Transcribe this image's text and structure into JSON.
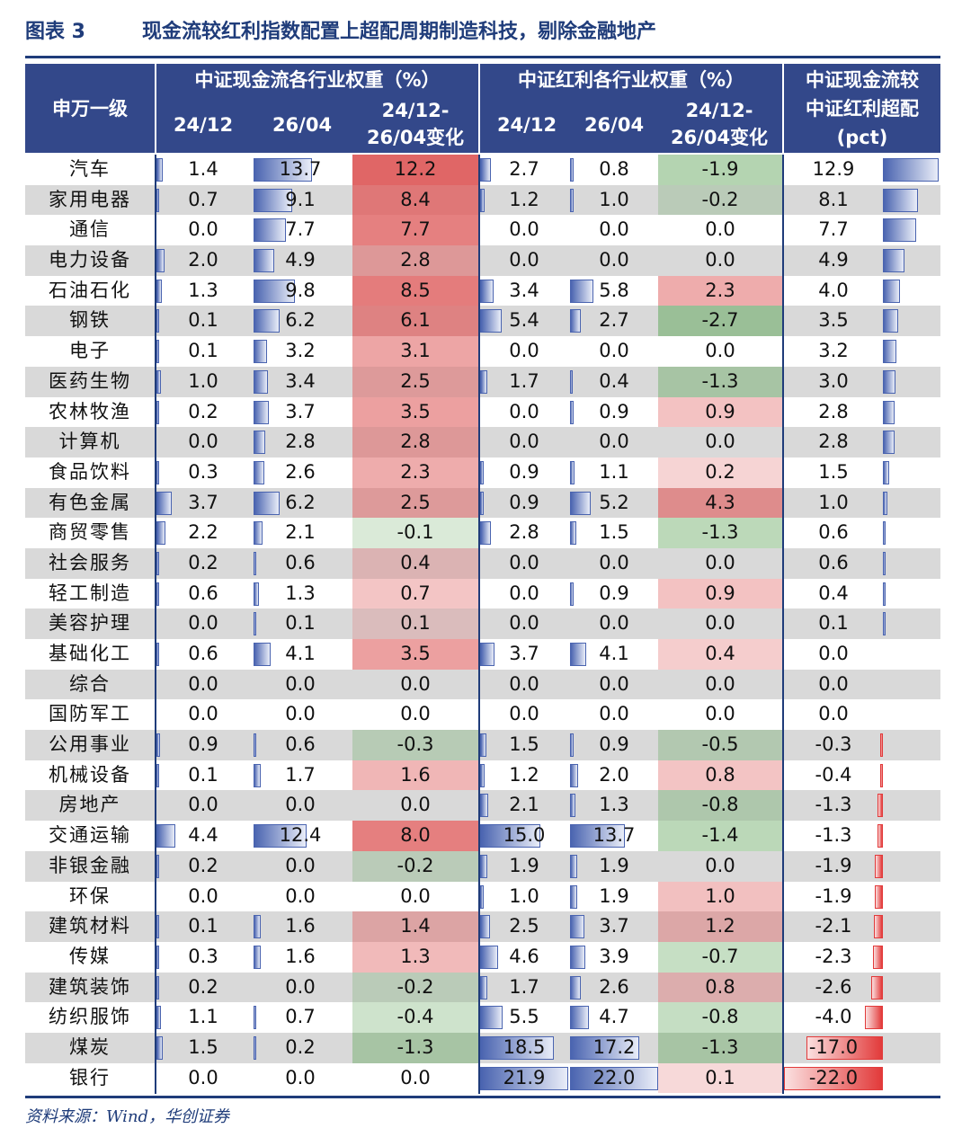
{
  "title": {
    "label": "图表 3",
    "text": "现金流较红利指数配置上超配周期制造科技，剔除金融地产"
  },
  "header": {
    "first_col": "申万一级",
    "group1": "中证现金流各行业权重（%）",
    "group2": "中证红利各行业权重（%）",
    "group3_line1": "中证现金流较",
    "group3_line2": "中证红利超配",
    "group3_line3": "(pct)",
    "col_2412": "24/12",
    "col_2604": "26/04",
    "col_chg_line1": "24/12-",
    "col_chg_line2": "26/04变化"
  },
  "colors": {
    "header_bg": "#33488a",
    "bar_blue": "#4a64b0",
    "bar_red": "#e23a3a",
    "pos": "#e06666",
    "neg": "#6aaa64"
  },
  "rows": [
    {
      "name": "汽车",
      "cf24": "1.4",
      "cf26": "13.7",
      "cfch": "12.2",
      "dv24": "2.7",
      "dv26": "0.8",
      "dvch": "-1.9",
      "ov": "12.9"
    },
    {
      "name": "家用电器",
      "cf24": "0.7",
      "cf26": "9.1",
      "cfch": "8.4",
      "dv24": "1.2",
      "dv26": "1.0",
      "dvch": "-0.2",
      "ov": "8.1"
    },
    {
      "name": "通信",
      "cf24": "0.0",
      "cf26": "7.7",
      "cfch": "7.7",
      "dv24": "0.0",
      "dv26": "0.0",
      "dvch": "0.0",
      "ov": "7.7"
    },
    {
      "name": "电力设备",
      "cf24": "2.0",
      "cf26": "4.9",
      "cfch": "2.8",
      "dv24": "0.0",
      "dv26": "0.0",
      "dvch": "0.0",
      "ov": "4.9"
    },
    {
      "name": "石油石化",
      "cf24": "1.3",
      "cf26": "9.8",
      "cfch": "8.5",
      "dv24": "3.4",
      "dv26": "5.8",
      "dvch": "2.3",
      "ov": "4.0"
    },
    {
      "name": "钢铁",
      "cf24": "0.1",
      "cf26": "6.2",
      "cfch": "6.1",
      "dv24": "5.4",
      "dv26": "2.7",
      "dvch": "-2.7",
      "ov": "3.5"
    },
    {
      "name": "电子",
      "cf24": "0.1",
      "cf26": "3.2",
      "cfch": "3.1",
      "dv24": "0.0",
      "dv26": "0.0",
      "dvch": "0.0",
      "ov": "3.2"
    },
    {
      "name": "医药生物",
      "cf24": "1.0",
      "cf26": "3.4",
      "cfch": "2.5",
      "dv24": "1.7",
      "dv26": "0.4",
      "dvch": "-1.3",
      "ov": "3.0"
    },
    {
      "name": "农林牧渔",
      "cf24": "0.2",
      "cf26": "3.7",
      "cfch": "3.5",
      "dv24": "0.0",
      "dv26": "0.9",
      "dvch": "0.9",
      "ov": "2.8"
    },
    {
      "name": "计算机",
      "cf24": "0.0",
      "cf26": "2.8",
      "cfch": "2.8",
      "dv24": "0.0",
      "dv26": "0.0",
      "dvch": "0.0",
      "ov": "2.8"
    },
    {
      "name": "食品饮料",
      "cf24": "0.3",
      "cf26": "2.6",
      "cfch": "2.3",
      "dv24": "0.9",
      "dv26": "1.1",
      "dvch": "0.2",
      "ov": "1.5"
    },
    {
      "name": "有色金属",
      "cf24": "3.7",
      "cf26": "6.2",
      "cfch": "2.5",
      "dv24": "0.9",
      "dv26": "5.2",
      "dvch": "4.3",
      "ov": "1.0"
    },
    {
      "name": "商贸零售",
      "cf24": "2.2",
      "cf26": "2.1",
      "cfch": "-0.1",
      "dv24": "2.8",
      "dv26": "1.5",
      "dvch": "-1.3",
      "ov": "0.6"
    },
    {
      "name": "社会服务",
      "cf24": "0.2",
      "cf26": "0.6",
      "cfch": "0.4",
      "dv24": "0.0",
      "dv26": "0.0",
      "dvch": "0.0",
      "ov": "0.6"
    },
    {
      "name": "轻工制造",
      "cf24": "0.6",
      "cf26": "1.3",
      "cfch": "0.7",
      "dv24": "0.0",
      "dv26": "0.9",
      "dvch": "0.9",
      "ov": "0.4"
    },
    {
      "name": "美容护理",
      "cf24": "0.0",
      "cf26": "0.1",
      "cfch": "0.1",
      "dv24": "0.0",
      "dv26": "0.0",
      "dvch": "0.0",
      "ov": "0.1"
    },
    {
      "name": "基础化工",
      "cf24": "0.6",
      "cf26": "4.1",
      "cfch": "3.5",
      "dv24": "3.7",
      "dv26": "4.1",
      "dvch": "0.4",
      "ov": "0.0"
    },
    {
      "name": "综合",
      "cf24": "0.0",
      "cf26": "0.0",
      "cfch": "0.0",
      "dv24": "0.0",
      "dv26": "0.0",
      "dvch": "0.0",
      "ov": "0.0"
    },
    {
      "name": "国防军工",
      "cf24": "0.0",
      "cf26": "0.0",
      "cfch": "0.0",
      "dv24": "0.0",
      "dv26": "0.0",
      "dvch": "0.0",
      "ov": "0.0"
    },
    {
      "name": "公用事业",
      "cf24": "0.9",
      "cf26": "0.6",
      "cfch": "-0.3",
      "dv24": "1.5",
      "dv26": "0.9",
      "dvch": "-0.5",
      "ov": "-0.3"
    },
    {
      "name": "机械设备",
      "cf24": "0.1",
      "cf26": "1.7",
      "cfch": "1.6",
      "dv24": "1.2",
      "dv26": "2.0",
      "dvch": "0.8",
      "ov": "-0.4"
    },
    {
      "name": "房地产",
      "cf24": "0.0",
      "cf26": "0.0",
      "cfch": "0.0",
      "dv24": "2.1",
      "dv26": "1.3",
      "dvch": "-0.8",
      "ov": "-1.3"
    },
    {
      "name": "交通运输",
      "cf24": "4.4",
      "cf26": "12.4",
      "cfch": "8.0",
      "dv24": "15.0",
      "dv26": "13.7",
      "dvch": "-1.4",
      "ov": "-1.3"
    },
    {
      "name": "非银金融",
      "cf24": "0.2",
      "cf26": "0.0",
      "cfch": "-0.2",
      "dv24": "1.9",
      "dv26": "1.9",
      "dvch": "0.0",
      "ov": "-1.9"
    },
    {
      "name": "环保",
      "cf24": "0.0",
      "cf26": "0.0",
      "cfch": "0.0",
      "dv24": "1.0",
      "dv26": "1.9",
      "dvch": "1.0",
      "ov": "-1.9"
    },
    {
      "name": "建筑材料",
      "cf24": "0.1",
      "cf26": "1.6",
      "cfch": "1.4",
      "dv24": "2.5",
      "dv26": "3.7",
      "dvch": "1.2",
      "ov": "-2.1"
    },
    {
      "name": "传媒",
      "cf24": "0.3",
      "cf26": "1.6",
      "cfch": "1.3",
      "dv24": "4.6",
      "dv26": "3.9",
      "dvch": "-0.7",
      "ov": "-2.3"
    },
    {
      "name": "建筑装饰",
      "cf24": "0.2",
      "cf26": "0.0",
      "cfch": "-0.2",
      "dv24": "1.7",
      "dv26": "2.6",
      "dvch": "0.8",
      "ov": "-2.6"
    },
    {
      "name": "纺织服饰",
      "cf24": "1.1",
      "cf26": "0.7",
      "cfch": "-0.4",
      "dv24": "5.5",
      "dv26": "4.7",
      "dvch": "-0.8",
      "ov": "-4.0"
    },
    {
      "name": "煤炭",
      "cf24": "1.5",
      "cf26": "0.2",
      "cfch": "-1.3",
      "dv24": "18.5",
      "dv26": "17.2",
      "dvch": "-1.3",
      "ov": "-17.0"
    },
    {
      "name": "银行",
      "cf24": "0.0",
      "cf26": "0.0",
      "cfch": "0.0",
      "dv24": "21.9",
      "dv26": "22.0",
      "dvch": "0.1",
      "ov": "-22.0"
    }
  ],
  "source": "资料来源：Wind，华创证券"
}
